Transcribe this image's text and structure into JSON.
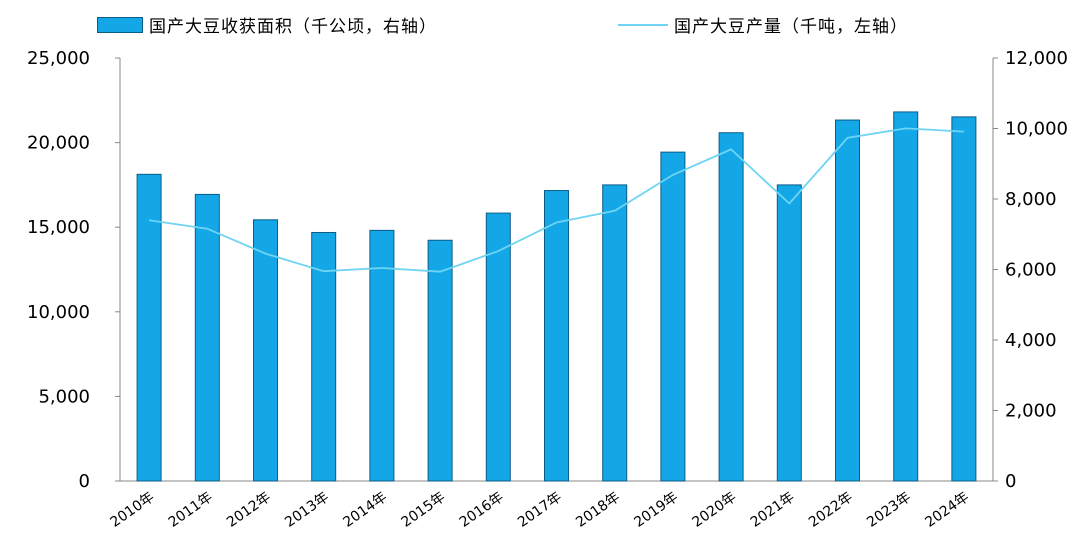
{
  "legend": {
    "bar_label": "国产大豆收获面积（千公顷，右轴）",
    "line_label": "国产大豆产量（千吨，左轴）"
  },
  "colors": {
    "bar_fill": "#13a7e8",
    "bar_stroke": "#0c5c86",
    "line": "#6fd4f3",
    "axis": "#888888"
  },
  "chart_data": {
    "type": "bar",
    "categories": [
      "2010年",
      "2011年",
      "2012年",
      "2013年",
      "2014年",
      "2015年",
      "2016年",
      "2017年",
      "2018年",
      "2019年",
      "2020年",
      "2021年",
      "2022年",
      "2023年",
      "2024年"
    ],
    "left_axis": {
      "ylim": [
        0,
        25000
      ],
      "ticks": [
        "0",
        "5,000",
        "10,000",
        "15,000",
        "20,000",
        "25,000"
      ]
    },
    "right_axis": {
      "ylim": [
        0,
        12000
      ],
      "ticks": [
        "0",
        "2,000",
        "4,000",
        "6,000",
        "8,000",
        "10,000",
        "12,000"
      ]
    },
    "series": [
      {
        "name": "国产大豆收获面积（千公顷，右轴）",
        "type": "bar",
        "axis": "right",
        "values": [
          8700,
          8130,
          7410,
          7050,
          7110,
          6830,
          7600,
          8240,
          8400,
          9330,
          9880,
          8400,
          10240,
          10470,
          10330
        ]
      },
      {
        "name": "国产大豆产量（千吨，左轴）",
        "type": "line",
        "axis": "left",
        "values": [
          15410,
          14910,
          13440,
          12400,
          12590,
          12370,
          13590,
          15280,
          15970,
          18090,
          19600,
          16400,
          20280,
          20840,
          20650
        ]
      }
    ]
  }
}
